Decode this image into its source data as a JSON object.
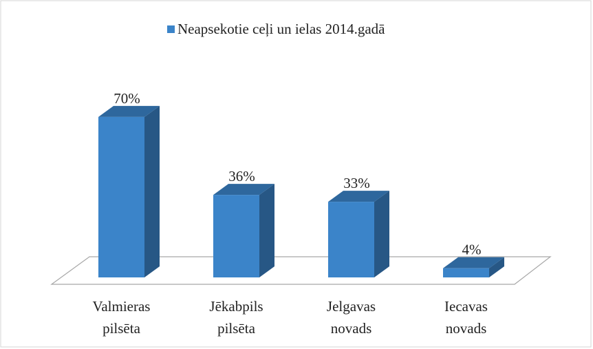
{
  "chart_data": {
    "type": "bar3d",
    "series": [
      {
        "name": "Neapsekotie ceļi un ielas 2014.gadā",
        "color": "#3b84c9",
        "values": [
          70,
          36,
          33,
          4
        ],
        "value_labels": [
          "70%",
          "36%",
          "33%",
          "4%"
        ]
      }
    ],
    "categories": [
      "Valmieras pilsēta",
      "Jēkabpils pilsēta",
      "Jelgavas novads",
      "Iecavas novads"
    ],
    "legend": "top"
  }
}
